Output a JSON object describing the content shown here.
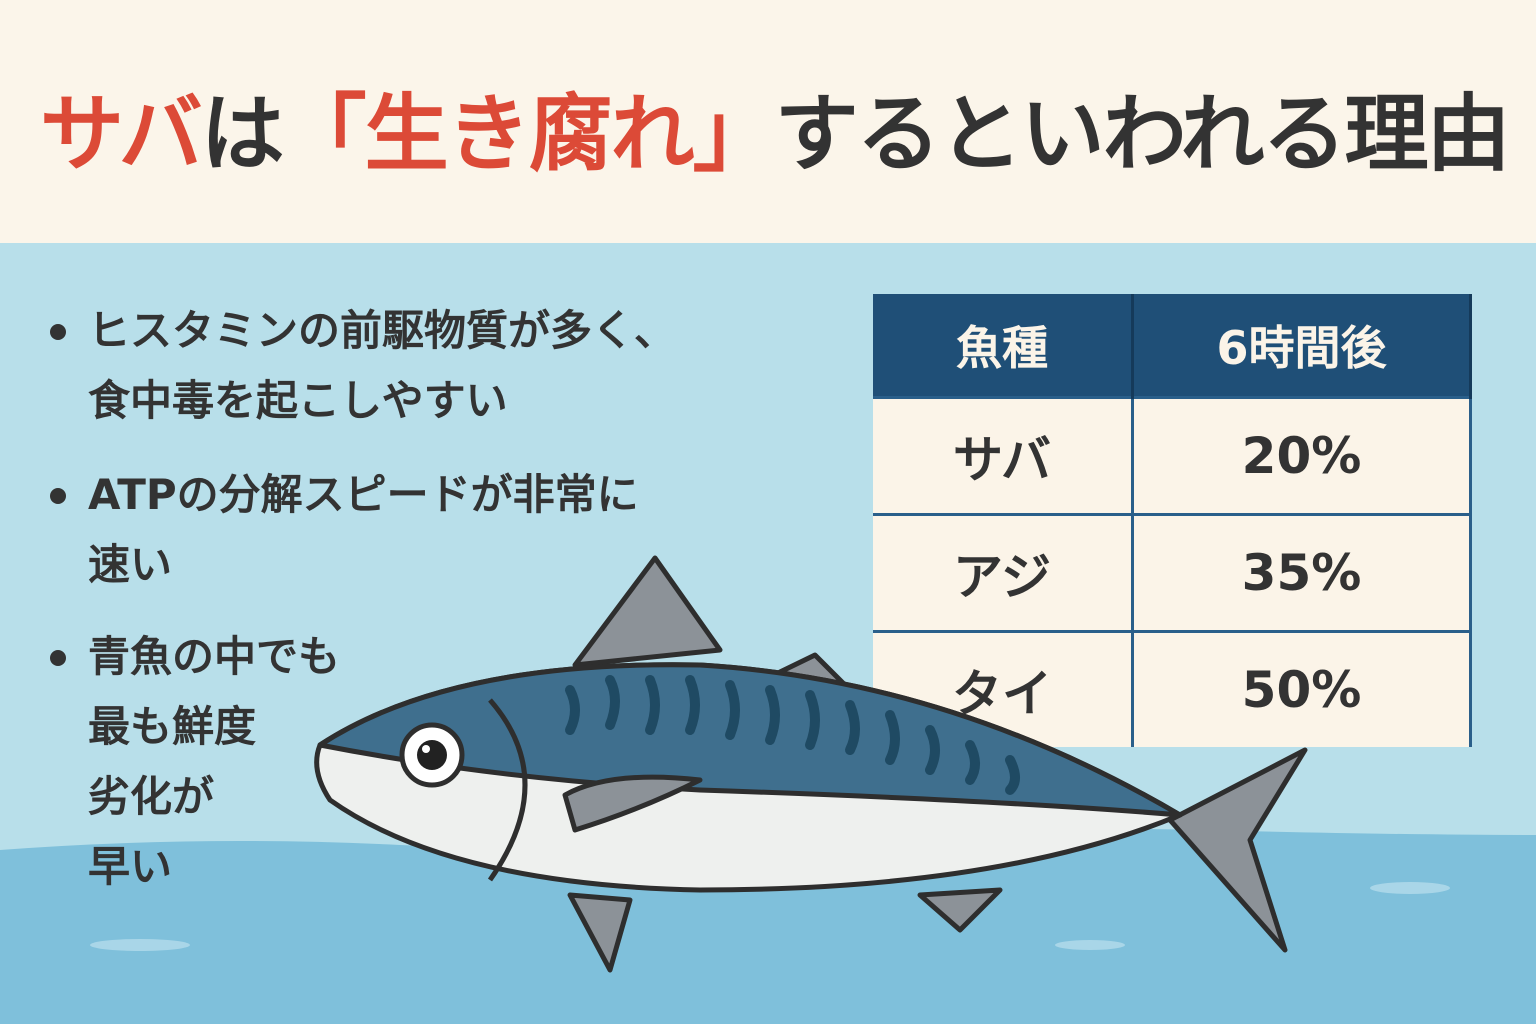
{
  "title": {
    "part1": "サバ",
    "part2": "は",
    "part3": "「生き腐れ」",
    "part4": "するといわれる理由"
  },
  "bullets": [
    {
      "text": "ヒスタミンの前駆物質が多く、\n食中毒を起こしやすい"
    },
    {
      "text": "ATPの分解スピードが非常に\n速い"
    },
    {
      "text": "青魚の中でも\n最も鮮度\n劣化が\n早い"
    }
  ],
  "table": {
    "headers": [
      "魚種",
      "6時間後"
    ],
    "rows": [
      [
        "サバ",
        "20%"
      ],
      [
        "アジ",
        "35%"
      ],
      [
        "タイ",
        "50%"
      ]
    ]
  },
  "colors": {
    "accent_red": "#dc4a37",
    "table_header": "#1f4f77",
    "sky": "#b8dfea",
    "water": "#7fc0db",
    "header_bg": "#fbf5ea"
  },
  "illustration": "mackerel-fish"
}
